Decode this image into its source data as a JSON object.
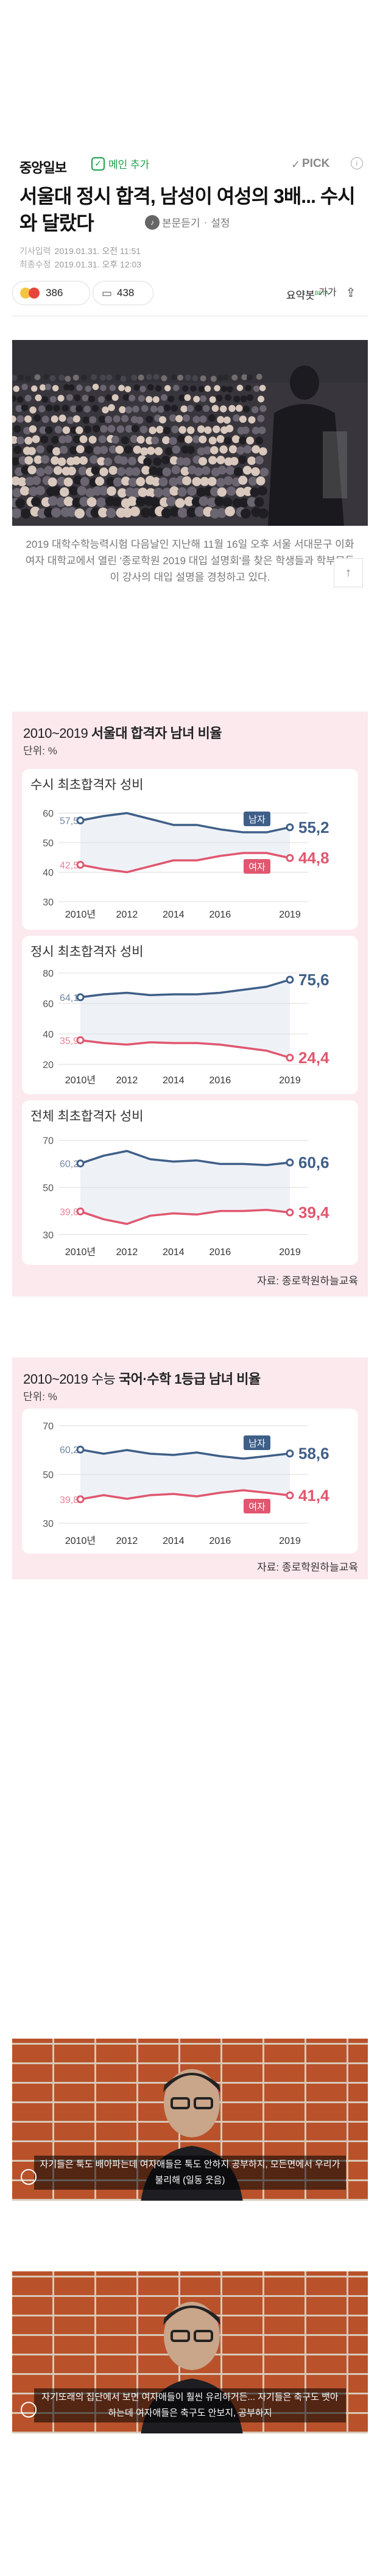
{
  "header": {
    "publisher": "중앙일보",
    "main_badge": "메인 추가",
    "pick": "PICK",
    "pick_info": "i",
    "title": "서울대 정시 합격, 남성이 여성의 3배... 수시와 달랐다",
    "listen": "본문듣기",
    "settings": "설정",
    "meta": [
      {
        "label": "기사입력",
        "value": "2019.01.31. 오전 11:51"
      },
      {
        "label": "최종수정",
        "value": "2019.01.31. 오후 12:03"
      }
    ],
    "reaction_count": "386",
    "comment_count": "438",
    "summary": "요약봇",
    "beta": "BETA",
    "font_btn": "가가",
    "share_icon": "share-icon"
  },
  "photo": {
    "caption": "2019 대학수학능력시험 다음날인 지난해 11월 16일 오후 서울 서대문구 이화여자 대학교에서 열린 '종로학원 2019 대입 설명회'를 찾은 학생들과 학부모들이 강사의 대입 설명을 경청하고 있다.",
    "top_button": "TOP"
  },
  "chart1": {
    "title_light": "2010~2019 ",
    "title_bold": "서울대 합격자 남녀 비율",
    "unit": "단위: %",
    "source": "자료: 종로학원하늘교육"
  },
  "chart2": {
    "title_light": "2010~2019 수능 ",
    "title_bold": "국어·수학 1등급 남녀 비율",
    "unit": "단위: %",
    "source": "자료: 종로학원하늘교육"
  },
  "chart_data": [
    {
      "type": "line",
      "title": "수시 최초합격자 성비",
      "x": [
        2010,
        2011,
        2012,
        2013,
        2014,
        2015,
        2016,
        2017,
        2018,
        2019
      ],
      "xticks": [
        "2010년",
        "2012",
        "2014",
        "2016",
        "2019"
      ],
      "yticks": [
        30,
        40,
        50,
        60
      ],
      "ylim": [
        30,
        63
      ],
      "series": [
        {
          "name": "남자",
          "values": [
            57.5,
            59,
            60,
            58,
            56,
            56,
            54.5,
            53.5,
            53.5,
            55.2
          ],
          "color": "#3f5f88",
          "start_label": "57,5",
          "end_label": "55,2"
        },
        {
          "name": "여자",
          "values": [
            42.5,
            41,
            40,
            42,
            44,
            44,
            45.5,
            46.5,
            46.5,
            44.8
          ],
          "color": "#e0576f",
          "start_label": "42,5",
          "end_label": "44,8"
        }
      ]
    },
    {
      "type": "line",
      "title": "정시 최초합격자 성비",
      "x": [
        2010,
        2011,
        2012,
        2013,
        2014,
        2015,
        2016,
        2017,
        2018,
        2019
      ],
      "xticks": [
        "2010년",
        "2012",
        "2014",
        "2016",
        "2019"
      ],
      "yticks": [
        20,
        40,
        60,
        80
      ],
      "ylim": [
        18,
        82
      ],
      "series": [
        {
          "name": "남자",
          "values": [
            64.1,
            66,
            67,
            65.5,
            66,
            66,
            67,
            69,
            71,
            75.6
          ],
          "color": "#3f5f88",
          "start_label": "64,1",
          "end_label": "75,6"
        },
        {
          "name": "여자",
          "values": [
            35.9,
            34,
            33,
            34.5,
            34,
            34,
            33,
            31,
            29,
            24.4
          ],
          "color": "#e0576f",
          "start_label": "35,9",
          "end_label": "24,4"
        }
      ]
    },
    {
      "type": "line",
      "title": "전체 최초합격자 성비",
      "x": [
        2010,
        2011,
        2012,
        2013,
        2014,
        2015,
        2016,
        2017,
        2018,
        2019
      ],
      "xticks": [
        "2010년",
        "2012",
        "2014",
        "2016",
        "2019"
      ],
      "yticks": [
        30,
        50,
        70
      ],
      "ylim": [
        28,
        72
      ],
      "series": [
        {
          "name": "남자",
          "values": [
            60.2,
            63.5,
            65.5,
            62,
            61,
            61.5,
            60,
            60,
            59.5,
            60.6
          ],
          "color": "#3f5f88",
          "start_label": "60,2",
          "end_label": "60,6"
        },
        {
          "name": "여자",
          "values": [
            39.8,
            36.5,
            34.5,
            38,
            39,
            38.5,
            40,
            40,
            40.5,
            39.4
          ],
          "color": "#e0576f",
          "start_label": "39,8",
          "end_label": "39,4"
        }
      ]
    },
    {
      "type": "line",
      "title": "",
      "x": [
        2010,
        2011,
        2012,
        2013,
        2014,
        2015,
        2016,
        2017,
        2018,
        2019
      ],
      "xticks": [
        "2010년",
        "2012",
        "2014",
        "2016",
        "2019"
      ],
      "yticks": [
        30,
        50,
        70
      ],
      "ylim": [
        28,
        72
      ],
      "series": [
        {
          "name": "남자",
          "values": [
            60.2,
            58.5,
            60,
            58.5,
            58,
            59,
            57.5,
            56.5,
            57.5,
            58.6
          ],
          "color": "#3f5f88",
          "start_label": "60,2",
          "end_label": "58,6"
        },
        {
          "name": "여자",
          "values": [
            39.8,
            41.5,
            40,
            41.5,
            42,
            41,
            42.5,
            43.5,
            42.5,
            41.4
          ],
          "color": "#e0576f",
          "start_label": "39,8",
          "end_label": "41,4"
        }
      ]
    }
  ],
  "videos": [
    {
      "subtitle": "자기들은 툭도 배아파는데 여자애들은 툭도 안하지 공부하지, 모든면에서 우리가 불리해 (일동 웃음)"
    },
    {
      "subtitle": "자기또래의 집단에서 보면 여자애들이 훨씬 유리하거든... 자기들은 축구도 뱃아하는데 여자애들은 축구도 안보지, 공부하지"
    }
  ],
  "colors": {
    "male": "#3f5f88",
    "female": "#e0576f",
    "panel": "#fbe9ee"
  }
}
